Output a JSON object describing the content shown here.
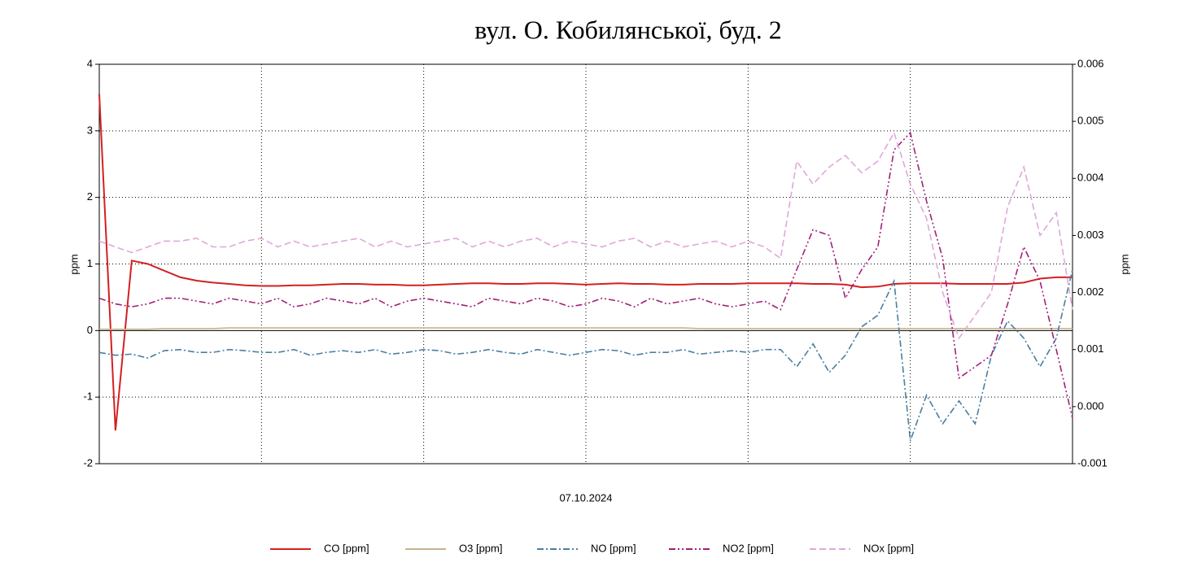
{
  "chart_data": {
    "type": "line",
    "title": "вул. О. Кобилянської, буд. 2",
    "x_label": "07.10.2024",
    "y_label": "ppm",
    "y2_label": "ppm",
    "categories": [
      null,
      null,
      null,
      null,
      null,
      null,
      null,
      null,
      null,
      null,
      null,
      null,
      null,
      null,
      null,
      null,
      null,
      null,
      null,
      null,
      null,
      null,
      null,
      null,
      null,
      null,
      null,
      null,
      null,
      null,
      null,
      null,
      null,
      null,
      null,
      null,
      null,
      null,
      null,
      null,
      null,
      null,
      null,
      null,
      null,
      null,
      null,
      null,
      null,
      null,
      null,
      null,
      null,
      null,
      null,
      null,
      null,
      null,
      null,
      null,
      null
    ],
    "ylim": [
      -2,
      4
    ],
    "yticks": [
      -2,
      -1,
      0,
      1,
      2,
      3,
      4
    ],
    "y2lim": [
      -0.001,
      0.006
    ],
    "y2ticks": [
      -0.001,
      {
        "value": 0,
        "label": "0.000"
      },
      0.001,
      0.002,
      0.003,
      0.004,
      0.005,
      0.006
    ],
    "grid": true,
    "series": [
      {
        "name": "CO [ppm]",
        "color": "#d42020",
        "dash": "none",
        "values": [
          3.55,
          -1.5,
          1.05,
          1.0,
          0.9,
          0.8,
          0.75,
          0.72,
          0.7,
          0.68,
          0.67,
          0.67,
          0.68,
          0.68,
          0.69,
          0.7,
          0.7,
          0.69,
          0.69,
          0.68,
          0.68,
          0.69,
          0.7,
          0.71,
          0.71,
          0.7,
          0.7,
          0.71,
          0.71,
          0.7,
          0.69,
          0.7,
          0.71,
          0.7,
          0.7,
          0.69,
          0.69,
          0.7,
          0.7,
          0.7,
          0.71,
          0.71,
          0.71,
          0.71,
          0.7,
          0.7,
          0.69,
          0.65,
          0.66,
          0.7,
          0.71,
          0.71,
          0.71,
          0.7,
          0.7,
          0.7,
          0.7,
          0.72,
          0.78,
          0.8,
          0.8
        ]
      },
      {
        "name": "O3 [ppm]",
        "color": "#c8b48c",
        "dash": "none",
        "values": [
          0.02,
          0.02,
          0.02,
          0.02,
          0.03,
          0.03,
          0.03,
          0.03,
          0.04,
          0.04,
          0.04,
          0.04,
          0.04,
          0.04,
          0.04,
          0.04,
          0.04,
          0.04,
          0.04,
          0.04,
          0.04,
          0.04,
          0.04,
          0.04,
          0.04,
          0.04,
          0.04,
          0.04,
          0.04,
          0.04,
          0.04,
          0.04,
          0.04,
          0.04,
          0.04,
          0.04,
          0.04,
          0.03,
          0.03,
          0.03,
          0.03,
          0.03,
          0.03,
          0.03,
          0.03,
          0.03,
          0.03,
          0.03,
          0.03,
          0.03,
          0.03,
          0.03,
          0.03,
          0.03,
          0.03,
          0.03,
          0.03,
          0.03,
          0.03,
          0.03,
          0.03
        ]
      },
      {
        "name": "NO [ppm]",
        "color": "#4a7fa0",
        "dash": "8 3 2 3",
        "axis": "y2",
        "values": [
          0.00095,
          0.0009,
          0.00092,
          0.00085,
          0.00098,
          0.001,
          0.00095,
          0.00095,
          0.001,
          0.00098,
          0.00095,
          0.00095,
          0.001,
          0.0009,
          0.00095,
          0.00098,
          0.00095,
          0.001,
          0.00092,
          0.00095,
          0.001,
          0.00098,
          0.00092,
          0.00095,
          0.001,
          0.00095,
          0.00092,
          0.001,
          0.00095,
          0.0009,
          0.00095,
          0.001,
          0.00098,
          0.0009,
          0.00095,
          0.00095,
          0.001,
          0.00092,
          0.00095,
          0.00098,
          0.00095,
          0.001,
          0.001,
          0.0007,
          0.0011,
          0.0006,
          0.0009,
          0.0014,
          0.0016,
          0.0022,
          -0.0006,
          0.0002,
          -0.0003,
          0.0001,
          -0.0003,
          0.0009,
          0.0015,
          0.0012,
          0.0007,
          0.0012,
          0.0024
        ]
      },
      {
        "name": "NO2 [ppm]",
        "color": "#a0207a",
        "dash": "8 3 2 3 2 3",
        "axis": "y2",
        "values": [
          0.0019,
          0.0018,
          0.00175,
          0.0018,
          0.0019,
          0.0019,
          0.00185,
          0.0018,
          0.0019,
          0.00185,
          0.0018,
          0.0019,
          0.00175,
          0.0018,
          0.0019,
          0.00185,
          0.0018,
          0.0019,
          0.00175,
          0.00185,
          0.0019,
          0.00185,
          0.0018,
          0.00175,
          0.0019,
          0.00185,
          0.0018,
          0.0019,
          0.00185,
          0.00175,
          0.0018,
          0.0019,
          0.00185,
          0.00175,
          0.0019,
          0.0018,
          0.00185,
          0.0019,
          0.0018,
          0.00175,
          0.0018,
          0.00185,
          0.0017,
          0.0024,
          0.0031,
          0.003,
          0.0019,
          0.0024,
          0.0028,
          0.0045,
          0.0048,
          0.0036,
          0.0026,
          0.0005,
          0.0007,
          0.0009,
          0.0018,
          0.0028,
          0.0022,
          0.001,
          -0.0002
        ]
      },
      {
        "name": "NOx [ppm]",
        "color": "#e0a8d8",
        "dash": "8 4",
        "axis": "y2",
        "values": [
          0.0029,
          0.0028,
          0.0027,
          0.0028,
          0.0029,
          0.0029,
          0.00295,
          0.0028,
          0.0028,
          0.0029,
          0.00295,
          0.0028,
          0.0029,
          0.0028,
          0.00285,
          0.0029,
          0.00295,
          0.0028,
          0.0029,
          0.0028,
          0.00285,
          0.0029,
          0.00295,
          0.0028,
          0.0029,
          0.0028,
          0.0029,
          0.00295,
          0.0028,
          0.0029,
          0.00285,
          0.0028,
          0.0029,
          0.00295,
          0.0028,
          0.0029,
          0.0028,
          0.00285,
          0.0029,
          0.0028,
          0.0029,
          0.0028,
          0.0026,
          0.0043,
          0.0039,
          0.0042,
          0.0044,
          0.0041,
          0.0043,
          0.0048,
          0.0039,
          0.0033,
          0.002,
          0.0012,
          0.0016,
          0.002,
          0.0035,
          0.0042,
          0.003,
          0.0034,
          0.0017
        ]
      }
    ]
  }
}
